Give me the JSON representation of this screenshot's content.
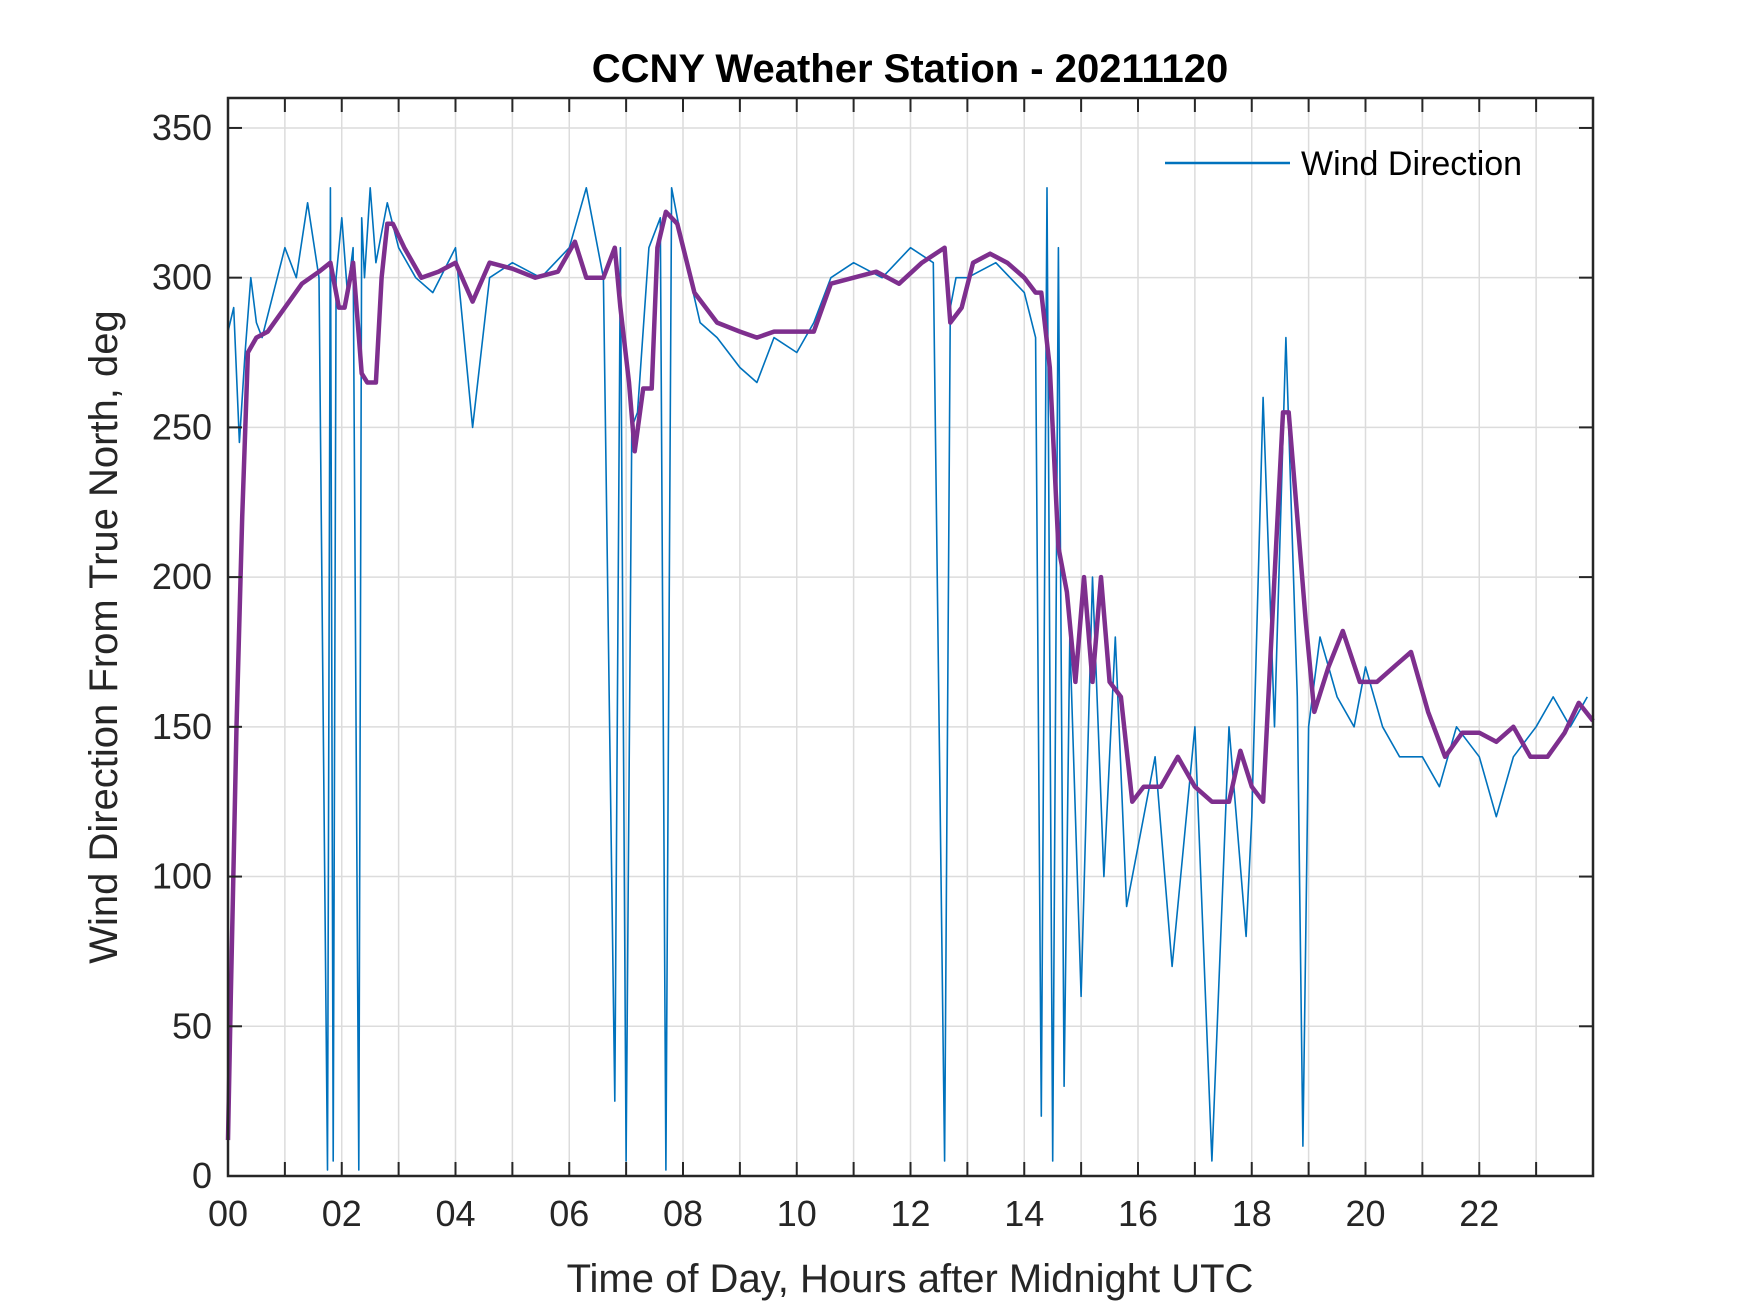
{
  "chart_data": {
    "type": "line",
    "title": "CCNY Weather Station - 20211120",
    "xlabel": "Time of Day, Hours after Midnight UTC",
    "ylabel": "Wind Direction From True North, deg",
    "xlim": [
      0,
      24
    ],
    "ylim": [
      0,
      360
    ],
    "x_ticks": [
      0,
      2,
      4,
      6,
      8,
      10,
      12,
      14,
      16,
      18,
      20,
      22
    ],
    "x_tick_labels": [
      "00",
      "02",
      "04",
      "06",
      "08",
      "10",
      "12",
      "14",
      "16",
      "18",
      "20",
      "22"
    ],
    "y_ticks": [
      0,
      50,
      100,
      150,
      200,
      250,
      300,
      350
    ],
    "y_tick_labels": [
      "0",
      "50",
      "100",
      "150",
      "200",
      "250",
      "300",
      "350"
    ],
    "grid": true,
    "legend_position": "top-right",
    "series": [
      {
        "name": "Wind Direction",
        "color": "#0072BD",
        "x": [
          0.0,
          0.1,
          0.2,
          0.3,
          0.4,
          0.5,
          0.6,
          0.8,
          1.0,
          1.2,
          1.4,
          1.6,
          1.75,
          1.8,
          1.85,
          1.9,
          2.0,
          2.1,
          2.2,
          2.3,
          2.35,
          2.4,
          2.5,
          2.6,
          2.8,
          3.0,
          3.3,
          3.6,
          4.0,
          4.3,
          4.6,
          5.0,
          5.5,
          6.0,
          6.3,
          6.6,
          6.8,
          6.9,
          7.0,
          7.1,
          7.2,
          7.4,
          7.6,
          7.7,
          7.8,
          8.0,
          8.3,
          8.6,
          9.0,
          9.3,
          9.6,
          10.0,
          10.3,
          10.6,
          11.0,
          11.5,
          12.0,
          12.4,
          12.6,
          12.7,
          12.8,
          13.0,
          13.5,
          14.0,
          14.2,
          14.3,
          14.4,
          14.5,
          14.6,
          14.7,
          14.8,
          15.0,
          15.2,
          15.4,
          15.6,
          15.8,
          16.0,
          16.3,
          16.6,
          17.0,
          17.3,
          17.6,
          17.9,
          18.0,
          18.2,
          18.4,
          18.6,
          18.8,
          18.9,
          19.0,
          19.2,
          19.5,
          19.8,
          20.0,
          20.3,
          20.6,
          21.0,
          21.3,
          21.6,
          22.0,
          22.3,
          22.6,
          23.0,
          23.3,
          23.6,
          23.9
        ],
        "values": [
          282,
          290,
          245,
          275,
          300,
          285,
          280,
          295,
          310,
          300,
          325,
          300,
          2,
          330,
          5,
          300,
          320,
          295,
          310,
          2,
          320,
          300,
          330,
          305,
          325,
          310,
          300,
          295,
          310,
          250,
          300,
          305,
          300,
          310,
          330,
          300,
          25,
          310,
          5,
          250,
          255,
          310,
          320,
          2,
          330,
          310,
          285,
          280,
          270,
          265,
          280,
          275,
          285,
          300,
          305,
          300,
          310,
          305,
          5,
          290,
          300,
          300,
          305,
          295,
          280,
          20,
          330,
          5,
          310,
          30,
          180,
          60,
          200,
          100,
          180,
          90,
          110,
          140,
          70,
          150,
          5,
          150,
          80,
          120,
          260,
          150,
          280,
          160,
          10,
          150,
          180,
          160,
          150,
          170,
          150,
          140,
          140,
          130,
          150,
          140,
          120,
          140,
          150,
          160,
          150,
          160
        ]
      },
      {
        "name": "",
        "color": "#7E2F8E",
        "x": [
          0.0,
          0.05,
          0.15,
          0.25,
          0.35,
          0.5,
          0.7,
          1.0,
          1.3,
          1.6,
          1.8,
          1.95,
          2.05,
          2.2,
          2.35,
          2.45,
          2.6,
          2.7,
          2.8,
          2.9,
          3.1,
          3.4,
          3.7,
          4.0,
          4.3,
          4.6,
          5.0,
          5.4,
          5.8,
          6.1,
          6.3,
          6.6,
          6.8,
          6.9,
          7.05,
          7.15,
          7.3,
          7.45,
          7.55,
          7.7,
          7.9,
          8.2,
          8.6,
          9.0,
          9.3,
          9.6,
          10.0,
          10.3,
          10.6,
          11.0,
          11.4,
          11.8,
          12.2,
          12.6,
          12.7,
          12.9,
          13.1,
          13.4,
          13.7,
          14.0,
          14.2,
          14.3,
          14.45,
          14.6,
          14.75,
          14.9,
          15.05,
          15.2,
          15.35,
          15.5,
          15.7,
          15.9,
          16.1,
          16.4,
          16.7,
          17.0,
          17.3,
          17.6,
          17.8,
          18.0,
          18.2,
          18.4,
          18.55,
          18.65,
          18.8,
          18.95,
          19.1,
          19.35,
          19.6,
          19.9,
          20.2,
          20.5,
          20.8,
          21.1,
          21.4,
          21.7,
          22.0,
          22.3,
          22.6,
          22.9,
          23.2,
          23.5,
          23.75,
          24.0
        ],
        "values": [
          12,
          60,
          150,
          220,
          275,
          280,
          282,
          290,
          298,
          302,
          305,
          290,
          290,
          305,
          268,
          265,
          265,
          300,
          318,
          318,
          310,
          300,
          302,
          305,
          292,
          305,
          303,
          300,
          302,
          312,
          300,
          300,
          310,
          290,
          265,
          242,
          263,
          263,
          310,
          322,
          318,
          295,
          285,
          282,
          280,
          282,
          282,
          282,
          298,
          300,
          302,
          298,
          305,
          310,
          285,
          290,
          305,
          308,
          305,
          300,
          295,
          295,
          270,
          210,
          195,
          165,
          200,
          165,
          200,
          165,
          160,
          125,
          130,
          130,
          140,
          130,
          125,
          125,
          142,
          130,
          125,
          200,
          255,
          255,
          220,
          185,
          155,
          170,
          182,
          165,
          165,
          170,
          175,
          155,
          140,
          148,
          148,
          145,
          150,
          140,
          140,
          148,
          158,
          152
        ]
      }
    ]
  }
}
